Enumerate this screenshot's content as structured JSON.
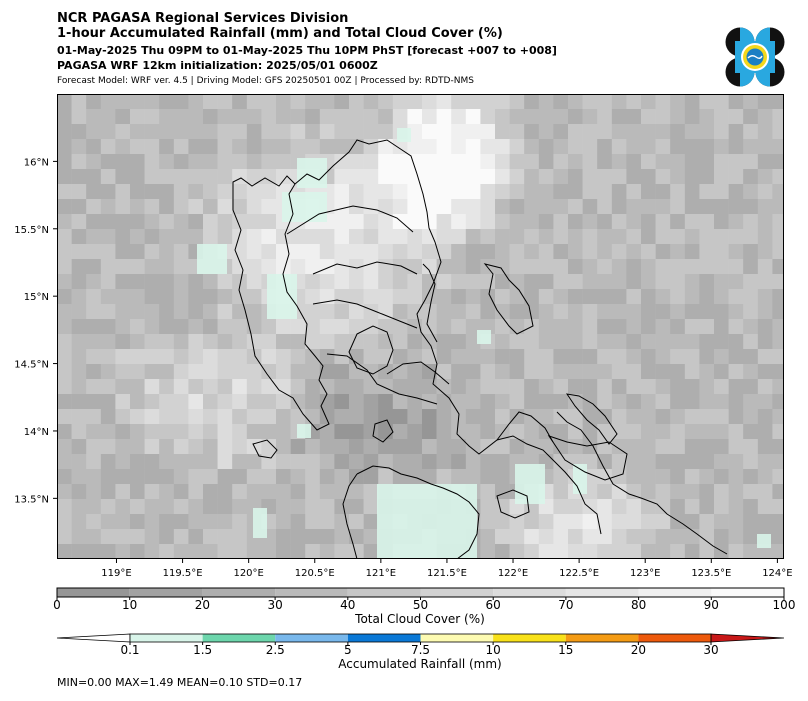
{
  "header": {
    "line1": "NCR PAGASA Regional Services Division",
    "line2": "1-hour Accumulated Rainfall (mm) and Total Cloud Cover (%)",
    "line3": "01-May-2025 Thu 09PM to 01-May-2025 Thu 10PM PhST [forecast +007 to +008]",
    "line4": "PAGASA WRF 12km initialization: 2025/05/01 0600Z",
    "line5": "Forecast Model: WRF ver. 4.5 | Driving Model: GFS 20250501 00Z | Processed by: RDTD-NMS"
  },
  "map": {
    "lat_labels": [
      "16°N",
      "15.5°N",
      "15°N",
      "14.5°N",
      "14°N",
      "13.5°N"
    ],
    "lat_values": [
      16,
      15.5,
      15,
      14.5,
      14,
      13.5
    ],
    "lon_labels": [
      "119°E",
      "119.5°E",
      "120°E",
      "120.5°E",
      "121°E",
      "121.5°E",
      "122°E",
      "122.5°E",
      "123°E",
      "123.5°E",
      "124°E"
    ],
    "lon_values": [
      119,
      119.5,
      120,
      120.5,
      121,
      121.5,
      122,
      122.5,
      123,
      123.5,
      124
    ],
    "lon_range": [
      118.55,
      124.05
    ],
    "lat_range": [
      13.05,
      16.5
    ]
  },
  "cloud_bar": {
    "label": "Total Cloud Cover (%)",
    "ticks": [
      "0",
      "10",
      "20",
      "30",
      "40",
      "50",
      "60",
      "70",
      "80",
      "90",
      "100"
    ],
    "colors": [
      "#969696",
      "#a2a2a2",
      "#aeaeae",
      "#bababa",
      "#c6c6c6",
      "#d2d2d2",
      "#dcdcdc",
      "#e6e6e6",
      "#f0f0f0",
      "#fafafa"
    ]
  },
  "rain_bar": {
    "label": "Accumulated Rainfall (mm)",
    "ticks": [
      "0.1",
      "1.5",
      "2.5",
      "5",
      "7.5",
      "10",
      "15",
      "20",
      "30"
    ],
    "colors": [
      "#ffffff",
      "#d9f5ea",
      "#6dd6ac",
      "#79b8ec",
      "#0a78d6",
      "#fdfbb2",
      "#f8e11a",
      "#f49b14",
      "#ee5a0c",
      "#c81818"
    ]
  },
  "stats": {
    "text": "MIN=0.00   MAX=1.49   MEAN=0.10   STD=0.17"
  },
  "colors": {
    "coastline": "#000000",
    "rain_light": "#d9f5ea"
  },
  "icons": {
    "logo": "pagasa-logo-icon"
  }
}
